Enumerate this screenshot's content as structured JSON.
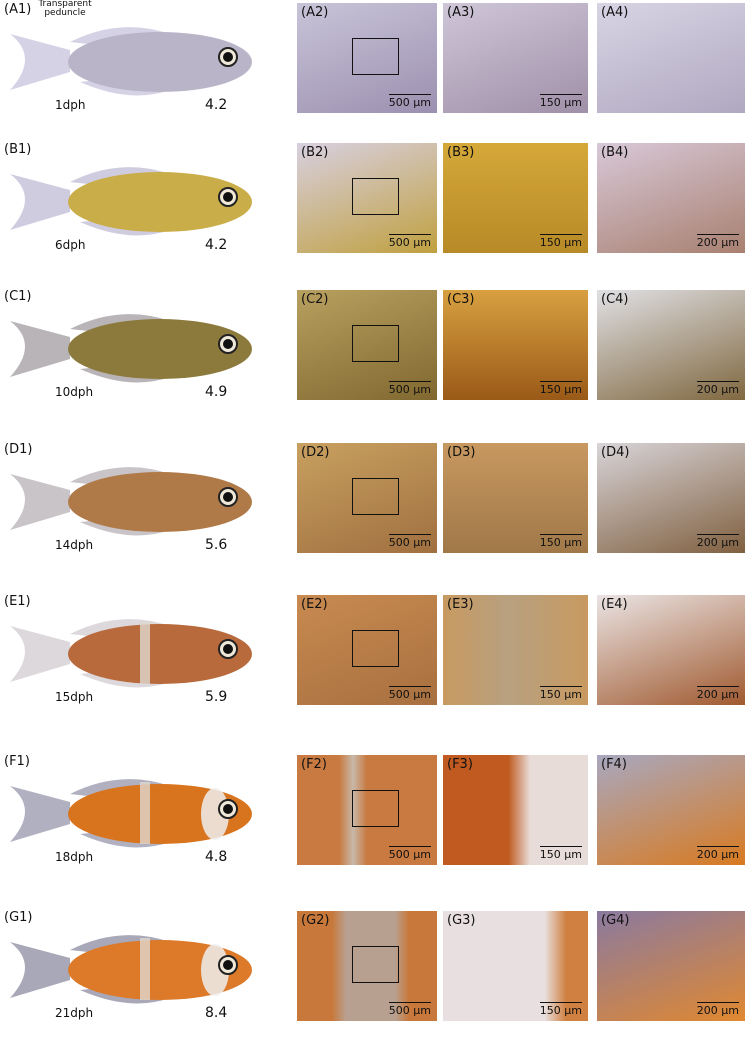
{
  "annotation": "Transparent peduncle",
  "rows": [
    {
      "label": "(A1)",
      "age": "1dph",
      "size": "4.2",
      "panels": [
        {
          "label": "(A2)",
          "scale": "500 µm"
        },
        {
          "label": "(A3)",
          "scale": "150 µm"
        },
        {
          "label": "(A4)"
        }
      ]
    },
    {
      "label": "(B1)",
      "age": "6dph",
      "size": "4.2",
      "panels": [
        {
          "label": "(B2)",
          "scale": "500 µm"
        },
        {
          "label": "(B3)",
          "scale": "150 µm"
        },
        {
          "label": "(B4)",
          "scale": "200 µm"
        }
      ]
    },
    {
      "label": "(C1)",
      "age": "10dph",
      "size": "4.9",
      "panels": [
        {
          "label": "(C2)",
          "scale": "500 µm"
        },
        {
          "label": "(C3)",
          "scale": "150 µm"
        },
        {
          "label": "(C4)",
          "scale": "200 µm"
        }
      ]
    },
    {
      "label": "(D1)",
      "age": "14dph",
      "size": "5.6",
      "panels": [
        {
          "label": "(D2)",
          "scale": "500 µm"
        },
        {
          "label": "(D3)",
          "scale": "150 µm"
        },
        {
          "label": "(D4)",
          "scale": "200 µm"
        }
      ]
    },
    {
      "label": "(E1)",
      "age": "15dph",
      "size": "5.9",
      "panels": [
        {
          "label": "(E2)",
          "scale": "500 µm"
        },
        {
          "label": "(E3)",
          "scale": "150 µm"
        },
        {
          "label": "(E4)",
          "scale": "200 µm"
        }
      ]
    },
    {
      "label": "(F1)",
      "age": "18dph",
      "size": "4.8",
      "panels": [
        {
          "label": "(F2)",
          "scale": "500 µm"
        },
        {
          "label": "(F3)",
          "scale": "150 µm"
        },
        {
          "label": "(F4)",
          "scale": "200 µm"
        }
      ]
    },
    {
      "label": "(G1)",
      "age": "21dph",
      "size": "8.4",
      "panels": [
        {
          "label": "(G2)",
          "scale": "500 µm"
        },
        {
          "label": "(G3)",
          "scale": "150 µm"
        },
        {
          "label": "(G4)",
          "scale": "200 µm"
        }
      ]
    }
  ]
}
